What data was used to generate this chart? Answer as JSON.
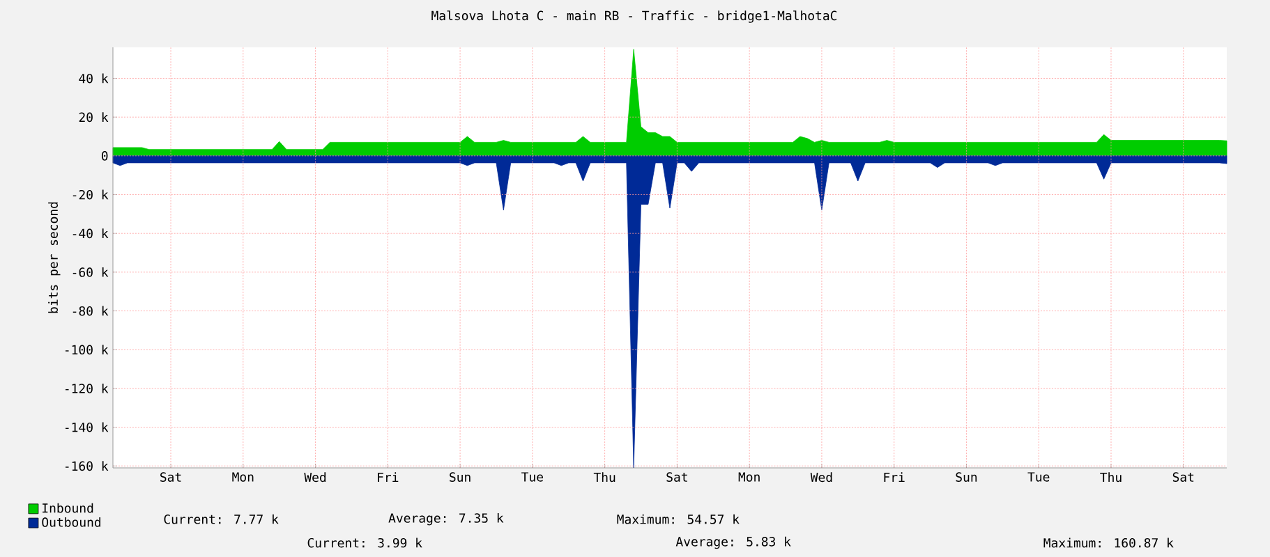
{
  "chart_data": {
    "type": "area",
    "title": "Malsova Lhota C - main RB - Traffic - bridge1-MalhotaC",
    "ylabel": "bits per second",
    "categories": [
      null,
      null,
      null,
      null,
      null,
      null,
      null,
      null,
      "Sat",
      null,
      null,
      null,
      null,
      null,
      null,
      null,
      null,
      null,
      "Mon",
      null,
      null,
      null,
      null,
      null,
      null,
      null,
      null,
      null,
      "Wed",
      null,
      null,
      null,
      null,
      null,
      null,
      null,
      null,
      null,
      "Fri",
      null,
      null,
      null,
      null,
      null,
      null,
      null,
      null,
      null,
      "Sun",
      null,
      null,
      null,
      null,
      null,
      null,
      null,
      null,
      null,
      "Tue",
      null,
      null,
      null,
      null,
      null,
      null,
      null,
      null,
      null,
      "Thu",
      null,
      null,
      null,
      null,
      null,
      null,
      null,
      null,
      null,
      "Sat",
      null,
      null,
      null,
      null,
      null,
      null,
      null,
      null,
      null,
      "Mon",
      null,
      null,
      null,
      null,
      null,
      null,
      null,
      null,
      null,
      "Wed",
      null,
      null,
      null,
      null,
      null,
      null,
      null,
      null,
      null,
      "Fri",
      null,
      null,
      null,
      null,
      null,
      null,
      null,
      null,
      null,
      "Sun",
      null,
      null,
      null,
      null,
      null,
      null,
      null,
      null,
      null,
      "Tue",
      null,
      null,
      null,
      null,
      null,
      null,
      null,
      null,
      null,
      "Thu",
      null,
      null,
      null,
      null,
      null,
      null,
      null,
      null,
      null,
      "Sat",
      null,
      null,
      null,
      null,
      null,
      null
    ],
    "ylim": [
      -161000,
      56000
    ],
    "yticks": [
      {
        "value": 40000,
        "label": "40 k"
      },
      {
        "value": 20000,
        "label": "20 k"
      },
      0,
      {
        "value": -20000,
        "label": "-20 k"
      },
      {
        "value": -40000,
        "label": "-40 k"
      },
      {
        "value": -60000,
        "label": "-60 k"
      },
      {
        "value": -80000,
        "label": "-80 k"
      },
      {
        "value": -100000,
        "label": "-100 k"
      },
      {
        "value": -120000,
        "label": "-120 k"
      },
      {
        "value": -140000,
        "label": "-140 k"
      },
      {
        "value": -160000,
        "label": "-160 k"
      }
    ],
    "grid": true,
    "legend": "bottom left",
    "series": [
      {
        "name": "Inbound",
        "color": "#00cc00",
        "values": [
          4300,
          4300,
          4300,
          4300,
          4300,
          3300,
          3300,
          3300,
          3300,
          3300,
          3300,
          3300,
          3300,
          3300,
          3300,
          3300,
          3300,
          3300,
          3300,
          3300,
          3300,
          3300,
          3300,
          7400,
          3300,
          3300,
          3300,
          3300,
          3300,
          3300,
          7000,
          7000,
          7000,
          7000,
          7000,
          7000,
          7000,
          7000,
          7000,
          7000,
          7000,
          7000,
          7000,
          7000,
          7000,
          7000,
          7000,
          7000,
          7000,
          10000,
          7000,
          7000,
          7000,
          7000,
          8000,
          7000,
          7000,
          7000,
          7000,
          7000,
          7000,
          7000,
          7000,
          7000,
          7000,
          10000,
          7000,
          7000,
          7000,
          7000,
          7000,
          7000,
          55000,
          15000,
          12000,
          12000,
          10000,
          10000,
          7000,
          7000,
          7000,
          7000,
          7000,
          7000,
          7000,
          7000,
          7000,
          7000,
          7000,
          7000,
          7000,
          7000,
          7000,
          7000,
          7000,
          10000,
          9000,
          7000,
          8000,
          7000,
          7000,
          7000,
          7000,
          7000,
          7000,
          7000,
          7000,
          8000,
          7000,
          7000,
          7000,
          7000,
          7000,
          7000,
          7000,
          7000,
          7000,
          7000,
          7000,
          7000,
          7000,
          7000,
          7000,
          7000,
          7000,
          7000,
          7000,
          7000,
          7000,
          7000,
          7000,
          7000,
          7000,
          7000,
          7000,
          7000,
          7000,
          11000,
          8000,
          8000,
          8000,
          8000,
          8000,
          8000,
          8000,
          8000,
          8000,
          8000,
          8000,
          8000,
          8000,
          8000,
          8000,
          8000,
          7800
        ]
      },
      {
        "name": "Outbound",
        "color": "#002a97",
        "values": [
          -3600,
          -5000,
          -3600,
          -3600,
          -3600,
          -3600,
          -3600,
          -3600,
          -3600,
          -3600,
          -3600,
          -3600,
          -3600,
          -3600,
          -3600,
          -3600,
          -3600,
          -3600,
          -3600,
          -3600,
          -3600,
          -3600,
          -3600,
          -3600,
          -3600,
          -3600,
          -3600,
          -3600,
          -3600,
          -3600,
          -3600,
          -3600,
          -3600,
          -3600,
          -3600,
          -3600,
          -3600,
          -3600,
          -3600,
          -3600,
          -3600,
          -3600,
          -3600,
          -3600,
          -3600,
          -3600,
          -3600,
          -3600,
          -3600,
          -5000,
          -3600,
          -3600,
          -3600,
          -3600,
          -28000,
          -3600,
          -3600,
          -3600,
          -3600,
          -3600,
          -3600,
          -3600,
          -5000,
          -3600,
          -3600,
          -13000,
          -3600,
          -3600,
          -3600,
          -3600,
          -3600,
          -3600,
          -161000,
          -25000,
          -25000,
          -3600,
          -3600,
          -27000,
          -3600,
          -3600,
          -8000,
          -3600,
          -3600,
          -3600,
          -3600,
          -3600,
          -3600,
          -3600,
          -3600,
          -3600,
          -3600,
          -3600,
          -3600,
          -3600,
          -3600,
          -3600,
          -3600,
          -3600,
          -28000,
          -3600,
          -3600,
          -3600,
          -3600,
          -13000,
          -3600,
          -3600,
          -3600,
          -3600,
          -3600,
          -3600,
          -3600,
          -3600,
          -3600,
          -3600,
          -6000,
          -3600,
          -3600,
          -3600,
          -3600,
          -3600,
          -3600,
          -3600,
          -5000,
          -3600,
          -3600,
          -3600,
          -3600,
          -3600,
          -3600,
          -3600,
          -3600,
          -3600,
          -3600,
          -3600,
          -3600,
          -3600,
          -3600,
          -12000,
          -3600,
          -3600,
          -3600,
          -3600,
          -3600,
          -3600,
          -3600,
          -3600,
          -3600,
          -3600,
          -3600,
          -3600,
          -3600,
          -3600,
          -3600,
          -3600,
          -4000
        ]
      }
    ],
    "annotations": [
      "Current:     7.77 k",
      "Average:     7.35 k",
      "Maximum:   54.57 k",
      "Current:     3.99 k",
      "Average:     5.83 k",
      "Maximum:  160.87 k"
    ]
  }
}
